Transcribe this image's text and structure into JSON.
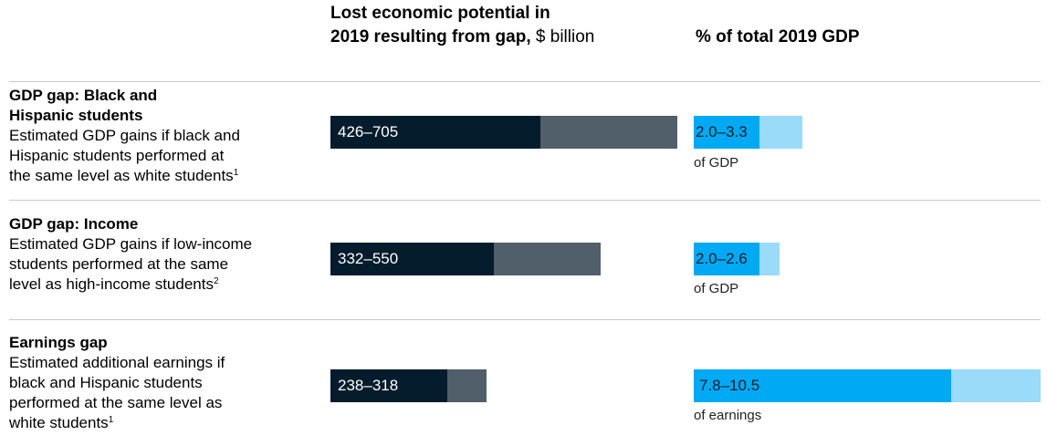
{
  "colors": {
    "gdp_low": "#051c2c",
    "gdp_high": "#505f69",
    "pct_low": "#00a9f4",
    "pct_high": "#99dbf9"
  },
  "header": {
    "lost_title_line1": "Lost economic potential in",
    "lost_title_line2": "2019 resulting from gap,",
    "lost_unit": " $ billion",
    "pct_title": "% of total 2019 GDP"
  },
  "rows": [
    {
      "title_line1": "GDP gap: Black and",
      "title_line2": "Hispanic students",
      "desc_lines": [
        "Estimated GDP gains if black and",
        "Hispanic students performed at",
        "the same level as white students"
      ],
      "footnote": "1",
      "range_label": "426–705",
      "pct_label": "2.0–3.3",
      "pct_unit": "of GDP"
    },
    {
      "title_line1": "GDP gap: Income",
      "title_line2": "",
      "desc_lines": [
        "Estimated GDP gains if low-income",
        "students performed at the same",
        "level as high-income students"
      ],
      "footnote": "2",
      "range_label": "332–550",
      "pct_label": "2.0–2.6",
      "pct_unit": "of GDP"
    },
    {
      "title_line1": "Earnings gap",
      "title_line2": "",
      "desc_lines": [
        "Estimated additional earnings if",
        "black and Hispanic students",
        "performed at the same level as",
        "white students"
      ],
      "footnote": "1",
      "range_label": "238–318",
      "pct_label": "7.8–10.5",
      "pct_unit": "of earnings"
    }
  ],
  "chart_data": [
    {
      "type": "bar",
      "title": "Lost economic potential in 2019 resulting from gap, $ billion",
      "categories": [
        "GDP gap: Black and Hispanic students",
        "GDP gap: Income",
        "Earnings gap"
      ],
      "series": [
        {
          "values_low": [
            426,
            332,
            238
          ],
          "values_high": [
            705,
            550,
            318
          ]
        }
      ],
      "xlim": [
        0,
        705
      ]
    },
    {
      "type": "bar",
      "title": "% of total 2019 GDP",
      "categories": [
        "GDP gap: Black and Hispanic students",
        "GDP gap: Income",
        "Earnings gap"
      ],
      "series": [
        {
          "values_low": [
            2.0,
            2.0,
            7.8
          ],
          "values_high": [
            3.3,
            2.6,
            10.5
          ]
        }
      ],
      "xlim": [
        0,
        10.5
      ]
    }
  ]
}
